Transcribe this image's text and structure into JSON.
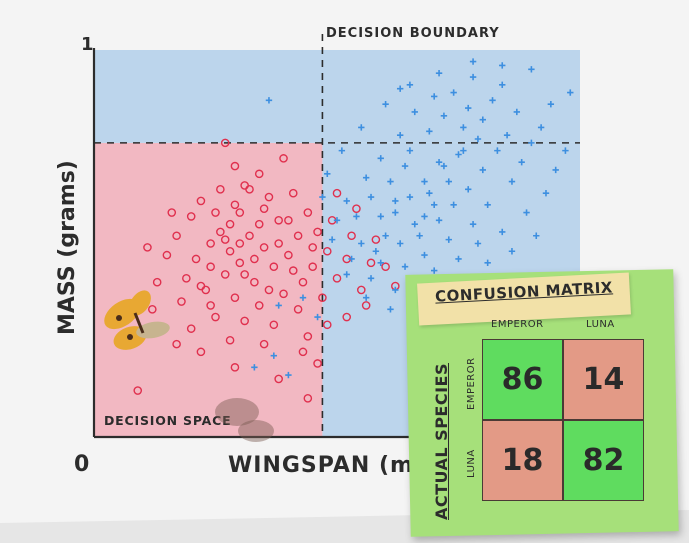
{
  "chart_data": {
    "type": "scatter",
    "xlabel": "WINGSPAN (m",
    "ylabel": "MASS (grams)",
    "y_top_tick": "1",
    "origin_tick": "0",
    "decision_boundary_label": "DECISION BOUNDARY",
    "decision_space_label": "DECISION SPACE",
    "xlim": [
      0,
      1
    ],
    "ylim": [
      0,
      1
    ],
    "boundary_x": 0.47,
    "boundary_y": 0.76,
    "grid": false,
    "colors": {
      "emperor_region": "#f2b8c2",
      "luna_region": "#bcd5ec",
      "emperor_marker": "#e0304e",
      "luna_marker": "#3d8fe0"
    },
    "series": [
      {
        "marker": "circle",
        "color": "#e0304e",
        "points": [
          [
            0.22,
            0.61
          ],
          [
            0.25,
            0.58
          ],
          [
            0.28,
            0.55
          ],
          [
            0.32,
            0.52
          ],
          [
            0.35,
            0.49
          ],
          [
            0.3,
            0.45
          ],
          [
            0.27,
            0.42
          ],
          [
            0.33,
            0.4
          ],
          [
            0.37,
            0.44
          ],
          [
            0.4,
            0.47
          ],
          [
            0.42,
            0.52
          ],
          [
            0.38,
            0.56
          ],
          [
            0.36,
            0.62
          ],
          [
            0.31,
            0.65
          ],
          [
            0.26,
            0.64
          ],
          [
            0.24,
            0.5
          ],
          [
            0.21,
            0.46
          ],
          [
            0.19,
            0.41
          ],
          [
            0.23,
            0.38
          ],
          [
            0.29,
            0.36
          ],
          [
            0.34,
            0.34
          ],
          [
            0.39,
            0.37
          ],
          [
            0.43,
            0.4
          ],
          [
            0.45,
            0.44
          ],
          [
            0.48,
            0.48
          ],
          [
            0.46,
            0.53
          ],
          [
            0.44,
            0.58
          ],
          [
            0.41,
            0.63
          ],
          [
            0.34,
            0.68
          ],
          [
            0.29,
            0.7
          ],
          [
            0.17,
            0.52
          ],
          [
            0.15,
            0.47
          ],
          [
            0.18,
            0.35
          ],
          [
            0.25,
            0.31
          ],
          [
            0.31,
            0.3
          ],
          [
            0.37,
            0.29
          ],
          [
            0.42,
            0.33
          ],
          [
            0.47,
            0.36
          ],
          [
            0.5,
            0.41
          ],
          [
            0.52,
            0.46
          ],
          [
            0.49,
            0.56
          ],
          [
            0.39,
            0.72
          ],
          [
            0.27,
            0.76
          ],
          [
            0.2,
            0.57
          ],
          [
            0.13,
            0.4
          ],
          [
            0.12,
            0.33
          ],
          [
            0.2,
            0.28
          ],
          [
            0.28,
            0.25
          ],
          [
            0.35,
            0.24
          ],
          [
            0.44,
            0.26
          ],
          [
            0.52,
            0.31
          ],
          [
            0.55,
            0.38
          ],
          [
            0.57,
            0.45
          ],
          [
            0.53,
            0.52
          ],
          [
            0.3,
            0.58
          ],
          [
            0.33,
            0.46
          ],
          [
            0.28,
            0.48
          ],
          [
            0.26,
            0.53
          ],
          [
            0.34,
            0.55
          ],
          [
            0.38,
            0.5
          ],
          [
            0.31,
            0.42
          ],
          [
            0.36,
            0.38
          ],
          [
            0.24,
            0.44
          ],
          [
            0.22,
            0.39
          ],
          [
            0.41,
            0.43
          ],
          [
            0.29,
            0.6
          ],
          [
            0.32,
            0.64
          ],
          [
            0.35,
            0.59
          ],
          [
            0.27,
            0.51
          ],
          [
            0.3,
            0.5
          ],
          [
            0.46,
            0.19
          ],
          [
            0.38,
            0.15
          ],
          [
            0.44,
            0.1
          ],
          [
            0.29,
            0.18
          ],
          [
            0.22,
            0.22
          ],
          [
            0.43,
            0.22
          ],
          [
            0.16,
            0.58
          ],
          [
            0.11,
            0.49
          ],
          [
            0.54,
            0.59
          ],
          [
            0.5,
            0.63
          ],
          [
            0.58,
            0.51
          ],
          [
            0.6,
            0.44
          ],
          [
            0.62,
            0.39
          ],
          [
            0.56,
            0.34
          ],
          [
            0.48,
            0.29
          ],
          [
            0.09,
            0.12
          ],
          [
            0.17,
            0.24
          ],
          [
            0.24,
            0.34
          ],
          [
            0.4,
            0.56
          ],
          [
            0.45,
            0.49
          ]
        ]
      },
      {
        "marker": "plus",
        "color": "#3d8fe0",
        "points": [
          [
            0.62,
            0.58
          ],
          [
            0.65,
            0.62
          ],
          [
            0.68,
            0.66
          ],
          [
            0.72,
            0.7
          ],
          [
            0.75,
            0.73
          ],
          [
            0.7,
            0.6
          ],
          [
            0.66,
            0.55
          ],
          [
            0.6,
            0.52
          ],
          [
            0.58,
            0.48
          ],
          [
            0.63,
            0.5
          ],
          [
            0.67,
            0.52
          ],
          [
            0.71,
            0.56
          ],
          [
            0.74,
            0.6
          ],
          [
            0.77,
            0.64
          ],
          [
            0.8,
            0.69
          ],
          [
            0.83,
            0.74
          ],
          [
            0.85,
            0.78
          ],
          [
            0.79,
            0.77
          ],
          [
            0.76,
            0.8
          ],
          [
            0.72,
            0.83
          ],
          [
            0.69,
            0.79
          ],
          [
            0.64,
            0.7
          ],
          [
            0.61,
            0.66
          ],
          [
            0.57,
            0.62
          ],
          [
            0.54,
            0.57
          ],
          [
            0.55,
            0.5
          ],
          [
            0.59,
            0.45
          ],
          [
            0.64,
            0.44
          ],
          [
            0.68,
            0.47
          ],
          [
            0.73,
            0.51
          ],
          [
            0.78,
            0.55
          ],
          [
            0.81,
            0.6
          ],
          [
            0.86,
            0.66
          ],
          [
            0.88,
            0.71
          ],
          [
            0.9,
            0.76
          ],
          [
            0.92,
            0.8
          ],
          [
            0.87,
            0.84
          ],
          [
            0.82,
            0.87
          ],
          [
            0.77,
            0.85
          ],
          [
            0.74,
            0.89
          ],
          [
            0.7,
            0.88
          ],
          [
            0.66,
            0.84
          ],
          [
            0.63,
            0.78
          ],
          [
            0.59,
            0.72
          ],
          [
            0.56,
            0.67
          ],
          [
            0.52,
            0.61
          ],
          [
            0.5,
            0.56
          ],
          [
            0.53,
            0.46
          ],
          [
            0.57,
            0.41
          ],
          [
            0.62,
            0.38
          ],
          [
            0.66,
            0.4
          ],
          [
            0.7,
            0.43
          ],
          [
            0.75,
            0.46
          ],
          [
            0.79,
            0.5
          ],
          [
            0.84,
            0.53
          ],
          [
            0.89,
            0.58
          ],
          [
            0.93,
            0.63
          ],
          [
            0.95,
            0.69
          ],
          [
            0.97,
            0.74
          ],
          [
            0.94,
            0.86
          ],
          [
            0.98,
            0.89
          ],
          [
            0.84,
            0.91
          ],
          [
            0.78,
            0.93
          ],
          [
            0.71,
            0.94
          ],
          [
            0.65,
            0.91
          ],
          [
            0.6,
            0.86
          ],
          [
            0.55,
            0.8
          ],
          [
            0.51,
            0.74
          ],
          [
            0.48,
            0.68
          ],
          [
            0.47,
            0.62
          ],
          [
            0.49,
            0.51
          ],
          [
            0.52,
            0.42
          ],
          [
            0.56,
            0.36
          ],
          [
            0.61,
            0.33
          ],
          [
            0.67,
            0.35
          ],
          [
            0.72,
            0.38
          ],
          [
            0.76,
            0.41
          ],
          [
            0.81,
            0.45
          ],
          [
            0.86,
            0.48
          ],
          [
            0.91,
            0.52
          ],
          [
            0.4,
            0.16
          ],
          [
            0.37,
            0.21
          ],
          [
            0.33,
            0.18
          ],
          [
            0.46,
            0.31
          ],
          [
            0.43,
            0.36
          ],
          [
            0.38,
            0.34
          ],
          [
            0.59,
            0.57
          ],
          [
            0.69,
            0.63
          ],
          [
            0.73,
            0.66
          ],
          [
            0.65,
            0.74
          ],
          [
            0.8,
            0.82
          ],
          [
            0.76,
            0.74
          ],
          [
            0.71,
            0.71
          ],
          [
            0.68,
            0.57
          ],
          [
            0.62,
            0.61
          ],
          [
            0.36,
            0.87
          ],
          [
            0.78,
            0.97
          ],
          [
            0.84,
            0.96
          ],
          [
            0.9,
            0.95
          ],
          [
            0.63,
            0.9
          ]
        ]
      }
    ]
  },
  "confusion_matrix": {
    "title": "CONFUSION MATRIX",
    "columns": [
      "EMPEROR",
      "LUNA"
    ],
    "rows": [
      "EMPEROR",
      "LUNA"
    ],
    "row_axis_label": "ACTUAL SPECIES",
    "values": [
      [
        86,
        14
      ],
      [
        18,
        82
      ]
    ],
    "correct_color": "#5fdc5f",
    "wrong_color": "#e39a86"
  }
}
